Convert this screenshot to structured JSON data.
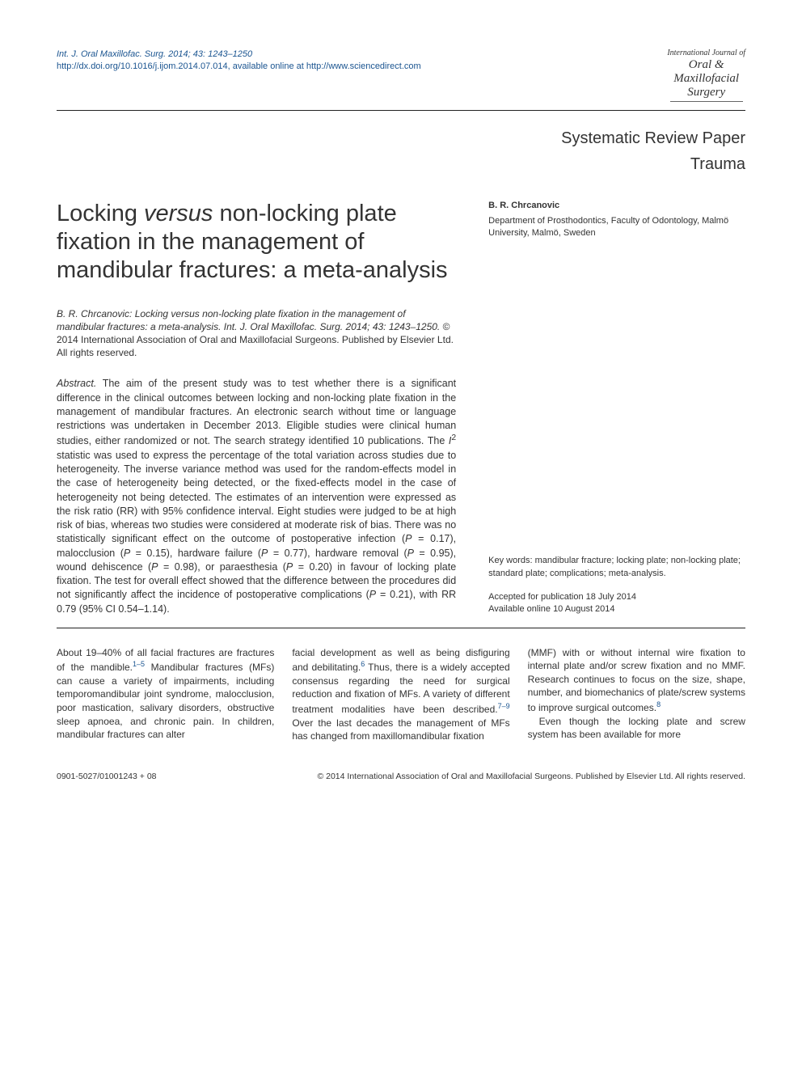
{
  "header": {
    "citation_line1": "Int. J. Oral Maxillofac. Surg. 2014; 43: 1243–1250",
    "doi_prefix": "http://dx.doi.org/10.1016/j.ijom.2014.07.014",
    "citation_line2_suffix": ", available online at http://www.sciencedirect.com",
    "journal_logo": {
      "line1": "International Journal of",
      "line2": "Oral &",
      "line3": "Maxillofacial",
      "line4": "Surgery"
    }
  },
  "section": {
    "type": "Systematic Review Paper",
    "sub": "Trauma"
  },
  "title": {
    "pre": "Locking ",
    "italic": "versus",
    "post": " non-locking plate fixation in the management of mandibular fractures: a meta-analysis"
  },
  "author": {
    "name": "B. R. Chrcanovic",
    "affiliation": "Department of Prosthodontics, Faculty of Odontology, Malmö University, Malmö, Sweden"
  },
  "citation": {
    "author_ital": "B. R.  Chrcanovic: Locking versus non-locking plate fixation in the management of mandibular fractures: a meta-analysis. Int. J. Oral Maxillofac. Surg. 2014; 43: 1243–1250.",
    "rest": " © 2014 International Association of Oral and Maxillofacial Surgeons. Published by Elsevier Ltd. All rights reserved."
  },
  "abstract": {
    "label": "Abstract.",
    "text_pre_i2": " The aim of the present study was to test whether there is a significant difference in the clinical outcomes between locking and non-locking plate fixation in the management of mandibular fractures. An electronic search without time or language restrictions was undertaken in December 2013. Eligible studies were clinical human studies, either randomized or not. The search strategy identified 10 publications. The ",
    "i2": "I",
    "i2_sup": "2",
    "text_post_i2": " statistic was used to express the percentage of the total variation across studies due to heterogeneity. The inverse variance method was used for the random-effects model in the case of heterogeneity being detected, or the fixed-effects model in the case of heterogeneity not being detected. The estimates of an intervention were expressed as the risk ratio (RR) with 95% confidence interval. Eight studies were judged to be at high risk of bias, whereas two studies were considered at moderate risk of bias. There was no statistically significant effect on the outcome of postoperative infection (",
    "p1_var": "P",
    "p1_val": " = 0.17), malocclusion (",
    "p2_var": "P",
    "p2_val": " = 0.15), hardware failure (",
    "p3_var": "P",
    "p3_val": " = 0.77), hardware removal (",
    "p4_var": "P",
    "p4_val": " = 0.95), wound dehiscence (",
    "p5_var": "P",
    "p5_val": " = 0.98), or paraesthesia (",
    "p6_var": "P",
    "p6_val": " = 0.20) in favour of locking plate fixation. The test for overall effect showed that the difference between the procedures did not significantly affect the incidence of postoperative complications (",
    "p7_var": "P",
    "p7_val": " = 0.21), with RR 0.79 (95% CI 0.54–1.14)."
  },
  "keywords": "Key words: mandibular fracture; locking plate; non-locking plate; standard plate; complications; meta-analysis.",
  "accepted": "Accepted for publication 18 July 2014",
  "available": "Available online 10 August 2014",
  "body": {
    "col1": {
      "text": "About 19–40% of all facial fractures are fractures of the mandible.",
      "sup1": "1–5",
      "text2": " Mandibular fractures (MFs) can cause a variety of impairments, including temporomandibular joint syndrome, malocclusion, poor mastication, salivary disorders, obstructive sleep apnoea, and chronic pain. In children, mandibular fractures can alter"
    },
    "col2": {
      "text": "facial development as well as being disfiguring and debilitating.",
      "sup1": "6",
      "text2": " Thus, there is a widely accepted consensus regarding the need for surgical reduction and fixation of MFs. A variety of different treatment modalities have been described.",
      "sup2": "7–9",
      "text3": " Over the last decades the management of MFs has changed from maxillomandibular fixation"
    },
    "col3": {
      "text": "(MMF) with or without internal wire fixation to internal plate and/or screw fixation and no MMF. Research continues to focus on the size, shape, number, and biomechanics of plate/screw systems to improve surgical outcomes.",
      "sup1": "8",
      "para2": "Even though the locking plate and screw system has been available for more"
    }
  },
  "footer": {
    "left": "0901-5027/01001243 + 08",
    "right": "© 2014 International Association of Oral and Maxillofacial Surgeons. Published by Elsevier Ltd. All rights reserved."
  },
  "colors": {
    "link": "#1a5490",
    "text": "#333333",
    "rule": "#222222"
  }
}
